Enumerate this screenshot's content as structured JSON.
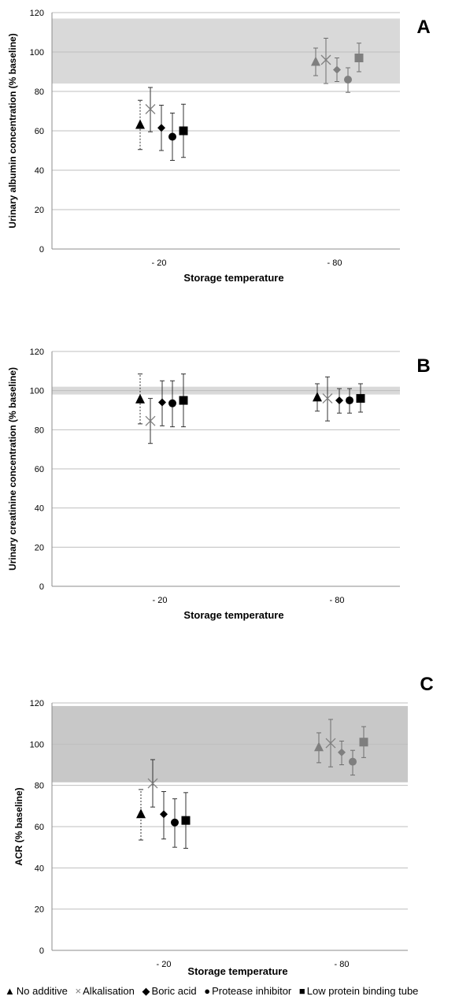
{
  "chart_data": [
    {
      "type": "scatter",
      "panel_label": "A",
      "xlabel": "Storage temperature",
      "ylabel": "Urinary albumin concentration (% baseline)",
      "ylim": [
        0,
        120
      ],
      "yticks": [
        "0",
        "20",
        "40",
        "60",
        "80",
        "100",
        "120"
      ],
      "categories": [
        "- 20",
        "- 80"
      ],
      "reference_band": [
        84,
        117
      ],
      "grid": true,
      "series": [
        {
          "marker": "triangle",
          "values": [
            63,
            95
          ],
          "error": [
            [
              50.5,
              75.5
            ],
            [
              88,
              102
            ]
          ]
        },
        {
          "marker": "x",
          "values": [
            71,
            96
          ],
          "error": [
            [
              59.5,
              82
            ],
            [
              84,
              107
            ]
          ]
        },
        {
          "marker": "diamond",
          "values": [
            61.5,
            91
          ],
          "error": [
            [
              50,
              73
            ],
            [
              85,
              97
            ]
          ]
        },
        {
          "marker": "circle",
          "values": [
            57,
            86
          ],
          "error": [
            [
              45,
              69
            ],
            [
              79.5,
              92
            ]
          ]
        },
        {
          "marker": "square",
          "values": [
            60,
            97
          ],
          "error": [
            [
              46.5,
              73.5
            ],
            [
              90,
              104.5
            ]
          ]
        }
      ]
    },
    {
      "type": "scatter",
      "panel_label": "B",
      "xlabel": "Storage temperature",
      "ylabel": "Urinary creatinine concentration (% baseline)",
      "ylim": [
        0,
        120
      ],
      "yticks": [
        "0",
        "20",
        "40",
        "60",
        "80",
        "100",
        "120"
      ],
      "categories": [
        "- 20",
        "- 80"
      ],
      "reference_band": [
        98,
        102
      ],
      "grid": true,
      "series": [
        {
          "marker": "triangle",
          "values": [
            95.5,
            96.5
          ],
          "error": [
            [
              83,
              108.5
            ],
            [
              89.5,
              103.5
            ]
          ]
        },
        {
          "marker": "x",
          "values": [
            84.5,
            96
          ],
          "error": [
            [
              73,
              96
            ],
            [
              84.5,
              107
            ]
          ]
        },
        {
          "marker": "diamond",
          "values": [
            94,
            95
          ],
          "error": [
            [
              82,
              105
            ],
            [
              88.5,
              101
            ]
          ]
        },
        {
          "marker": "circle",
          "values": [
            93.5,
            95
          ],
          "error": [
            [
              81.5,
              105
            ],
            [
              88.5,
              101
            ]
          ]
        },
        {
          "marker": "square",
          "values": [
            95,
            96
          ],
          "error": [
            [
              81.5,
              108.5
            ],
            [
              89,
              103.5
            ]
          ]
        }
      ]
    },
    {
      "type": "scatter",
      "panel_label": "C",
      "xlabel": "Storage temperature",
      "ylabel": "ACR (% baseline)",
      "ylim": [
        0,
        120
      ],
      "yticks": [
        "0",
        "20",
        "40",
        "60",
        "80",
        "100",
        "120"
      ],
      "categories": [
        "- 20",
        "- 80"
      ],
      "reference_band": [
        81.5,
        118.5
      ],
      "grid": true,
      "series": [
        {
          "marker": "triangle",
          "values": [
            66,
            98.5
          ],
          "error": [
            [
              53.5,
              78
            ],
            [
              91,
              105.5
            ]
          ]
        },
        {
          "marker": "x",
          "values": [
            81,
            100.5
          ],
          "error": [
            [
              69.5,
              92.5
            ],
            [
              89,
              112
            ]
          ]
        },
        {
          "marker": "diamond",
          "values": [
            66,
            96
          ],
          "error": [
            [
              54,
              77
            ],
            [
              90,
              101.5
            ]
          ]
        },
        {
          "marker": "circle",
          "values": [
            62,
            91.5
          ],
          "error": [
            [
              50,
              73.5
            ],
            [
              85,
              97
            ]
          ]
        },
        {
          "marker": "square",
          "values": [
            63,
            101
          ],
          "error": [
            [
              49.5,
              76.5
            ],
            [
              93.5,
              108.5
            ]
          ]
        }
      ]
    }
  ],
  "legend": [
    {
      "glyph": "▲",
      "label": "No additive"
    },
    {
      "glyph": "×",
      "label": "Alkalisation"
    },
    {
      "glyph": "◆",
      "label": "Boric acid"
    },
    {
      "glyph": "●",
      "label": "Protease inhibitor"
    },
    {
      "glyph": "■",
      "label": "Low protein binding tube"
    }
  ],
  "colors": {
    "band": "#d9d9d9",
    "band_dark": "#c8c8c8",
    "grid": "#bfbfbf",
    "axis": "#8c8c8c",
    "marker_dark": "#000000",
    "marker_gray": "#7f7f7f",
    "x_marker": "#808080"
  }
}
